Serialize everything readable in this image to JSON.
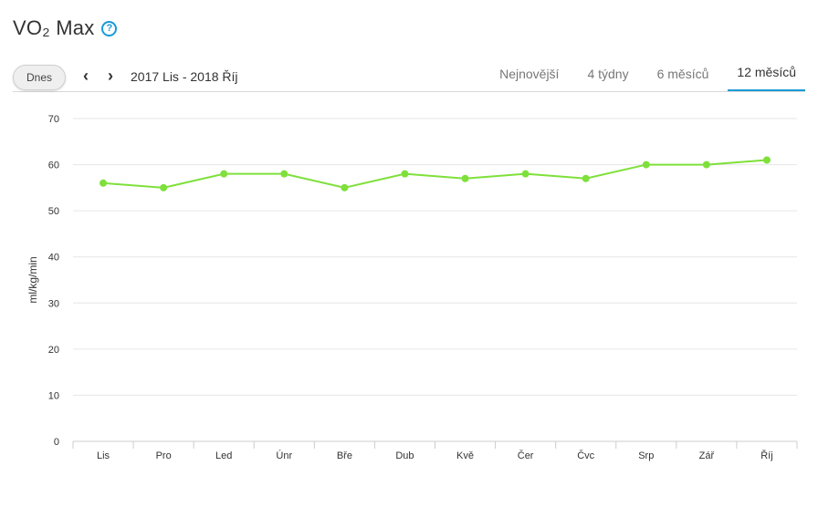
{
  "header": {
    "title": "VO₂ Max",
    "help_icon": "help-circle-icon"
  },
  "toolbar": {
    "today_label": "Dnes",
    "prev_icon": "chevron-left-icon",
    "next_icon": "chevron-right-icon",
    "date_range": "2017 Lis - 2018 Říj",
    "tabs": [
      {
        "label": "Nejnovější",
        "active": false
      },
      {
        "label": "4 týdny",
        "active": false
      },
      {
        "label": "6 měsíců",
        "active": false
      },
      {
        "label": "12 měsíců",
        "active": true
      }
    ],
    "accent_color": "#1a9ad6"
  },
  "chart_data": {
    "type": "line",
    "categories": [
      "Lis",
      "Pro",
      "Led",
      "Únr",
      "Bře",
      "Dub",
      "Kvě",
      "Čer",
      "Čvc",
      "Srp",
      "Zář",
      "Říj"
    ],
    "series": [
      {
        "values": [
          56,
          55,
          58,
          58,
          55,
          58,
          57,
          58,
          57,
          60,
          60,
          61
        ],
        "color": "#7ee03a"
      }
    ],
    "xlabel": "",
    "ylabel": "ml/kg/min",
    "ylim": [
      0,
      70
    ],
    "yticks": [
      0,
      10,
      20,
      30,
      40,
      50,
      60,
      70
    ],
    "grid": true,
    "legend": false
  }
}
